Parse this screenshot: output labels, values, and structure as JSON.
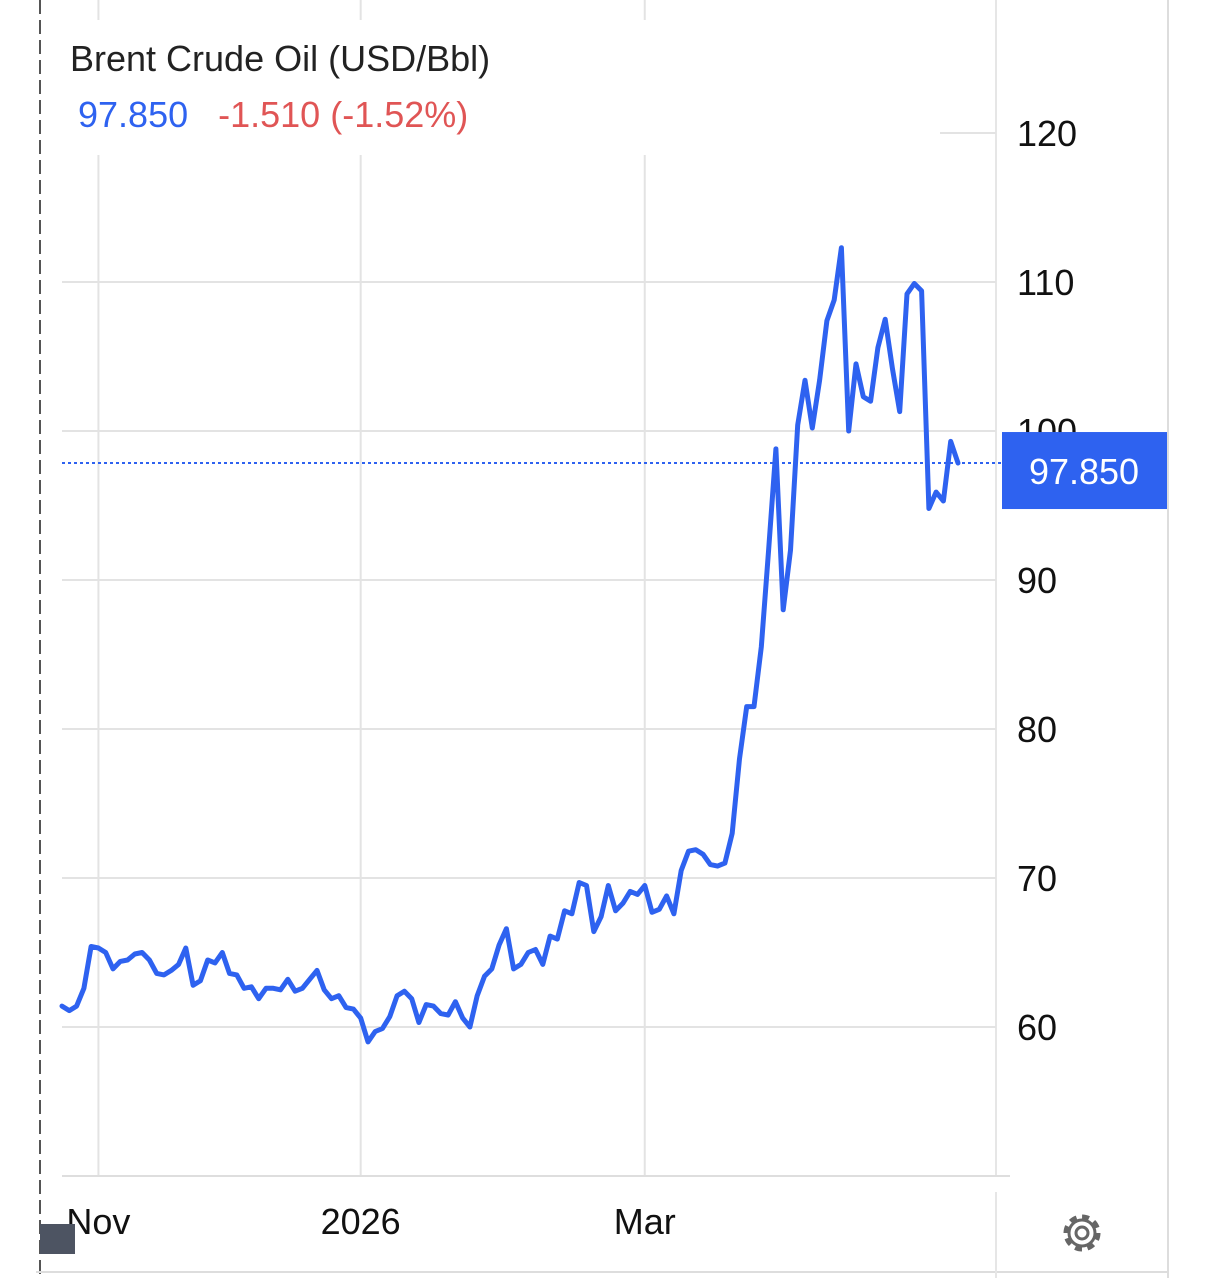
{
  "header": {
    "title": "Brent Crude Oil (USD/Bbl)",
    "last": "97.850",
    "change": "-1.510",
    "change_pct": "(-1.52%)"
  },
  "colors": {
    "line": "#2e62f0",
    "negative": "#e05555",
    "grid": "#e3e3e3",
    "price_tag_bg": "#2e62f0"
  },
  "icons": {
    "settings": "gear-icon"
  },
  "chart_data": {
    "type": "line",
    "title": "Brent Crude Oil (USD/Bbl)",
    "xlabel": "",
    "ylabel": "",
    "ylim": [
      50,
      128
    ],
    "yticks": [
      60,
      70,
      80,
      90,
      100,
      110,
      120
    ],
    "xticks": [
      {
        "label": "Nov",
        "index": 5
      },
      {
        "label": "2026",
        "index": 41
      },
      {
        "label": "Mar",
        "index": 80
      }
    ],
    "last_value": 97.85,
    "last_label": "97.850",
    "grid": true,
    "series": [
      {
        "values": [
          61.4,
          61.1,
          61.4,
          62.6,
          65.4,
          65.3,
          65.0,
          63.9,
          64.4,
          64.5,
          64.9,
          65.0,
          64.5,
          63.6,
          63.5,
          63.8,
          64.2,
          65.3,
          62.8,
          63.1,
          64.5,
          64.3,
          65.0,
          63.6,
          63.5,
          62.6,
          62.7,
          61.9,
          62.6,
          62.6,
          62.5,
          63.2,
          62.4,
          62.6,
          63.2,
          63.8,
          62.5,
          61.9,
          62.1,
          61.3,
          61.2,
          60.6,
          59.0,
          59.7,
          59.9,
          60.7,
          62.1,
          62.4,
          61.9,
          60.3,
          61.5,
          61.4,
          60.9,
          60.8,
          61.7,
          60.6,
          60.0,
          62.1,
          63.4,
          63.9,
          65.5,
          66.6,
          63.9,
          64.2,
          65.0,
          65.2,
          64.2,
          66.1,
          65.9,
          67.8,
          67.6,
          69.7,
          69.5,
          66.4,
          67.4,
          69.5,
          67.8,
          68.3,
          69.1,
          68.9,
          69.5,
          67.7,
          67.9,
          68.8,
          67.6,
          70.5,
          71.8,
          71.9,
          71.6,
          70.9,
          70.8,
          71.0,
          73.0,
          78.0,
          81.5,
          81.5,
          85.5,
          92.0,
          98.8,
          88.0,
          92.0,
          100.4,
          103.4,
          100.2,
          103.4,
          107.4,
          108.8,
          112.3,
          100.0,
          104.5,
          102.3,
          102.0,
          105.6,
          107.5,
          104.2,
          101.3,
          109.2,
          109.9,
          109.4,
          94.8,
          95.9,
          95.3,
          99.3,
          97.85
        ]
      }
    ]
  }
}
